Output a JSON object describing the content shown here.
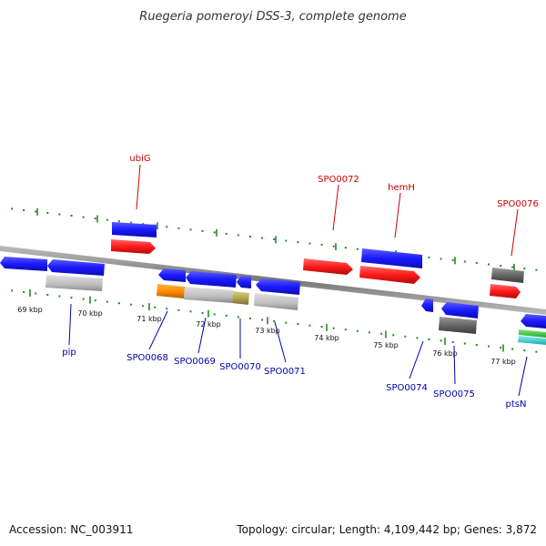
{
  "title": "Ruegeria pomeroyi DSS-3, complete genome",
  "footer": {
    "accession": "Accession: NC_003911",
    "summary": "Topology: circular; Length: 4,109,442 bp; Genes: 3,872"
  },
  "colors": {
    "blue": "#1a1aff",
    "red": "#ff1a1a",
    "gray": "#b8b8b8",
    "darkgray": "#666666",
    "orange": "#ff8c00",
    "olive": "#b3a64d",
    "green": "#33cc33",
    "cyan": "#33cccc",
    "tick": "#228822",
    "backbone": "#888888",
    "label_forward": "#cc0000",
    "label_reverse": "#0000aa"
  },
  "kbp_ticks": [
    {
      "label": "69 kbp"
    },
    {
      "label": "70 kbp"
    },
    {
      "label": "71 kbp"
    },
    {
      "label": "72 kbp"
    },
    {
      "label": "73 kbp"
    },
    {
      "label": "74 kbp"
    },
    {
      "label": "75 kbp"
    },
    {
      "label": "76 kbp"
    },
    {
      "label": "77 kbp"
    }
  ],
  "labels_forward": [
    {
      "text": "ubiG"
    },
    {
      "text": "SPO0072"
    },
    {
      "text": "hemH"
    },
    {
      "text": "SPO0076"
    }
  ],
  "labels_reverse": [
    {
      "text": "pip"
    },
    {
      "text": "SPO0068"
    },
    {
      "text": "SPO0069"
    },
    {
      "text": "SPO0070"
    },
    {
      "text": "SPO0071"
    },
    {
      "text": "SPO0074"
    },
    {
      "text": "SPO0075"
    },
    {
      "text": "ptsN"
    }
  ]
}
